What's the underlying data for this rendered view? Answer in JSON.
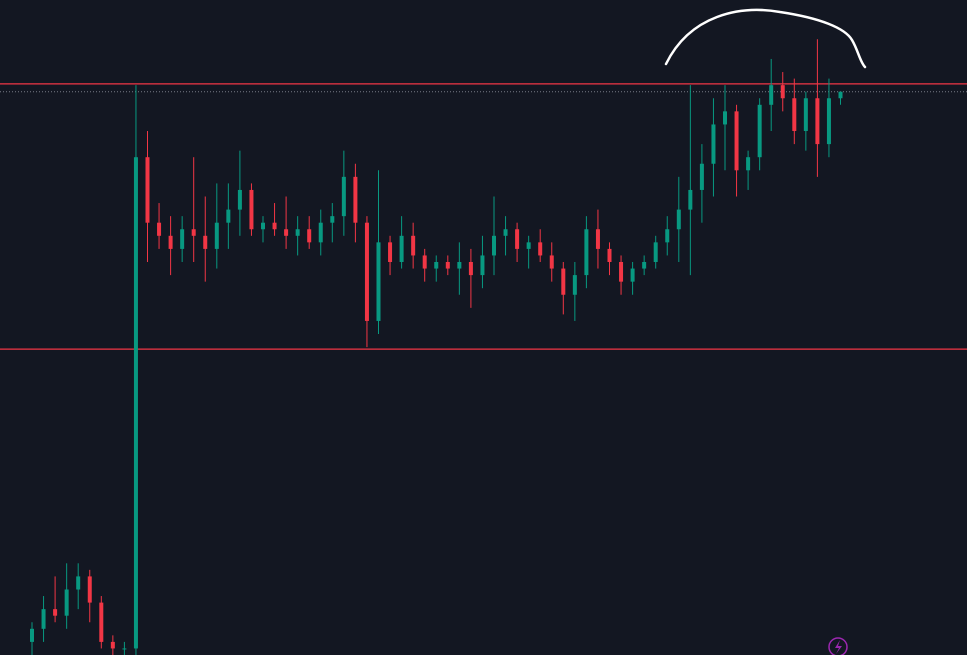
{
  "chart_data": {
    "type": "candlestick",
    "ylim": [
      0,
      100
    ],
    "up_color": "#089981",
    "down_color": "#f23645",
    "open": [
      2,
      4,
      7,
      6,
      10,
      12,
      8,
      2,
      1,
      1,
      76,
      66,
      64,
      62,
      65,
      64,
      62,
      66,
      68,
      71,
      65,
      66,
      65,
      64,
      65,
      63,
      66,
      67,
      73,
      66,
      51,
      63,
      60,
      64,
      61,
      59,
      60,
      59,
      60,
      58,
      61,
      64,
      65,
      62,
      63,
      61,
      59,
      55,
      58,
      65,
      62,
      60,
      57,
      59,
      60,
      63,
      65,
      68,
      71,
      75,
      81,
      83,
      74,
      76,
      84,
      87,
      85,
      80,
      85,
      78,
      85
    ],
    "high": [
      5,
      9,
      12,
      14,
      14,
      13,
      9,
      3,
      2,
      87,
      80,
      69,
      67,
      67,
      76,
      70,
      72,
      72,
      77,
      72,
      67,
      69,
      70,
      67,
      67,
      68,
      69,
      77,
      75,
      67,
      74,
      64,
      67,
      66,
      62,
      61,
      61,
      63,
      62,
      64,
      70,
      67,
      66,
      64,
      65,
      63,
      60,
      60,
      67,
      68,
      63,
      61,
      60,
      61,
      64,
      67,
      73,
      87,
      78,
      85,
      87,
      84,
      77,
      85,
      91,
      89,
      88,
      86,
      94,
      88,
      86
    ],
    "low": [
      0,
      2,
      5,
      4,
      7,
      5,
      1,
      0,
      0,
      0,
      60,
      62,
      58,
      60,
      60,
      57,
      59,
      62,
      64,
      64,
      63,
      64,
      62,
      61,
      62,
      61,
      63,
      64,
      63,
      47,
      49,
      58,
      59,
      59,
      57,
      57,
      58,
      55,
      53,
      56,
      58,
      61,
      60,
      59,
      60,
      57,
      52,
      51,
      56,
      59,
      58,
      55,
      55,
      58,
      59,
      61,
      60,
      58,
      66,
      70,
      74,
      70,
      71,
      74,
      80,
      83,
      78,
      77,
      73,
      76,
      84
    ],
    "close": [
      4,
      7,
      6,
      10,
      12,
      8,
      2,
      1,
      1,
      76,
      66,
      64,
      62,
      65,
      64,
      62,
      66,
      68,
      71,
      65,
      66,
      65,
      64,
      65,
      63,
      66,
      67,
      73,
      66,
      51,
      63,
      60,
      64,
      61,
      59,
      60,
      59,
      60,
      58,
      61,
      64,
      65,
      62,
      63,
      61,
      59,
      55,
      58,
      65,
      62,
      60,
      57,
      59,
      60,
      63,
      65,
      68,
      71,
      75,
      81,
      83,
      74,
      76,
      84,
      87,
      85,
      80,
      85,
      78,
      85,
      86
    ],
    "hlines": [
      {
        "value": 87.2,
        "color": "#f23645"
      },
      {
        "value": 46.7,
        "color": "#f23645"
      },
      {
        "value": 86,
        "color": "#787b86",
        "style": "dotted"
      }
    ]
  }
}
